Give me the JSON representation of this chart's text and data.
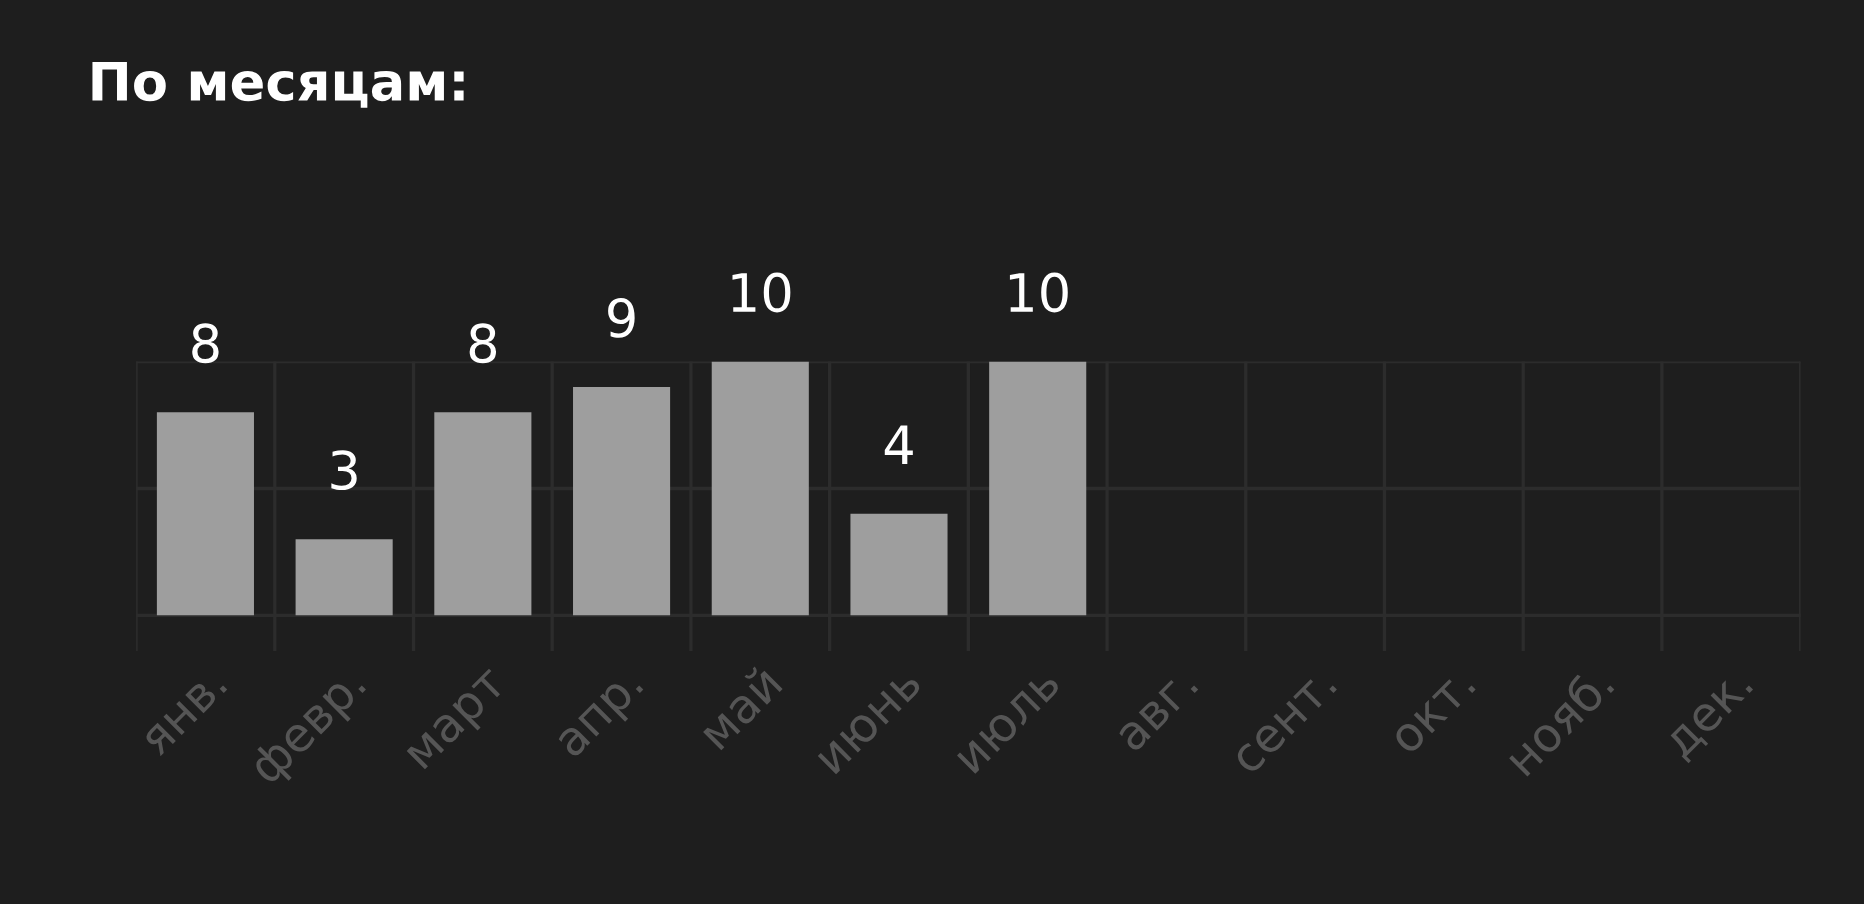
{
  "chart_data": {
    "type": "bar",
    "title": "По месяцам:",
    "categories": [
      "янв.",
      "февр.",
      "март",
      "апр.",
      "май",
      "июнь",
      "июль",
      "авг.",
      "сент.",
      "окт.",
      "нояб.",
      "дек."
    ],
    "values": [
      8,
      3,
      8,
      9,
      10,
      4,
      10,
      null,
      null,
      null,
      null,
      null
    ],
    "color": "#9e9e9e",
    "data_labels": true,
    "grid": true,
    "tick_labels": "x",
    "ylim": [
      -1.4,
      10
    ],
    "yticks": [
      {
        "value": 0,
        "label": null
      },
      {
        "value": 5,
        "label": null
      },
      {
        "value": 10,
        "label": null
      }
    ]
  }
}
